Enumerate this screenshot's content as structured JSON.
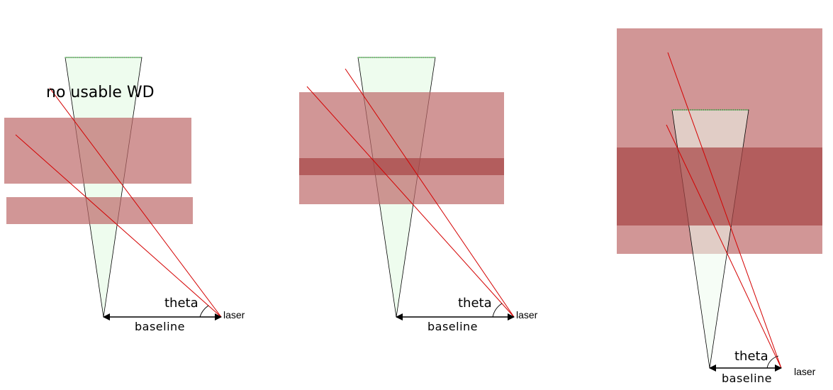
{
  "panels": [
    {
      "id": "left",
      "note": "no usable WD",
      "theta_label": "theta",
      "baseline_label": "baseline",
      "laser_label": "laser"
    },
    {
      "id": "middle",
      "note": "",
      "theta_label": "theta",
      "baseline_label": "baseline",
      "laser_label": "laser"
    },
    {
      "id": "right",
      "note": "",
      "theta_label": "theta",
      "baseline_label": "baseline",
      "laser_label": "laser"
    }
  ],
  "colors": {
    "cone_fill": "#eefcee",
    "cone_top": "#66dd66",
    "band": "#be6a6a",
    "band_overlap": "#a84646",
    "laser_ray": "#d40000"
  }
}
